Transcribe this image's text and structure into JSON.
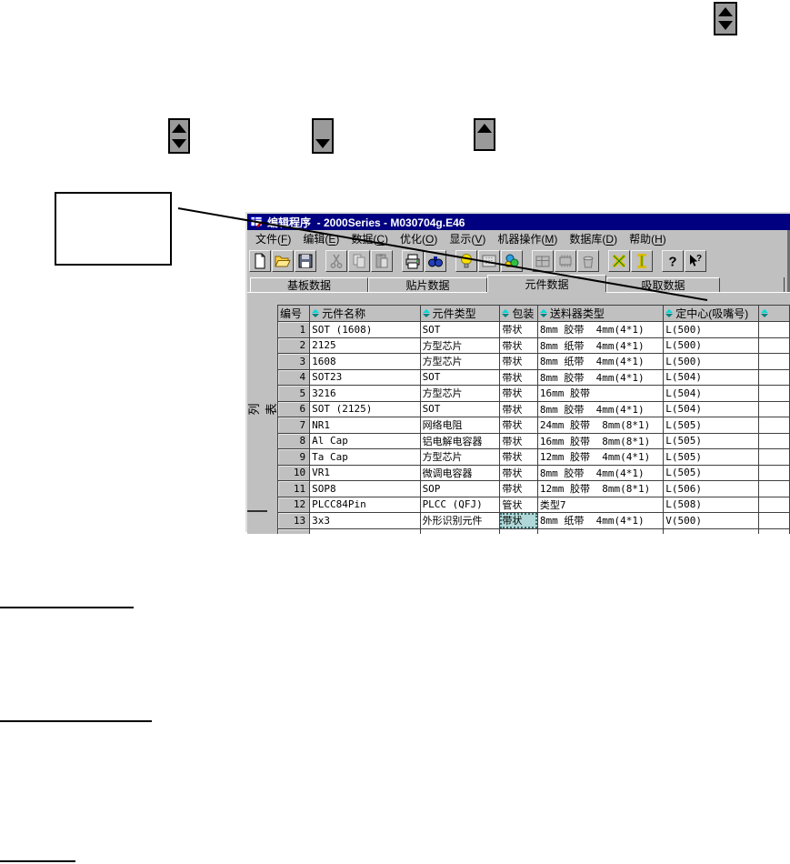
{
  "annotations": {
    "callout_box": "empty callout box pointing to component-data tab area",
    "icons": [
      {
        "name": "spin-up-down-icon",
        "position": "top-right"
      },
      {
        "name": "spin-up-down-icon",
        "position": "mid-left"
      },
      {
        "name": "spin-down-icon",
        "position": "mid-center"
      },
      {
        "name": "spin-up-icon",
        "position": "mid-right"
      }
    ],
    "heading_underlines": 3
  },
  "colors": {
    "titlebar": "#000080",
    "window_bg": "#c0c0c0",
    "sort_up": "#00d8d8",
    "sort_down": "#008080",
    "selected_cell_bg": "#b0d8d8"
  },
  "window": {
    "title": "编辑程序  - 2000Series - M030704g.E46",
    "menu": [
      {
        "id": "file",
        "text_before": "文件(",
        "hotkey": "F",
        "text_after": ")"
      },
      {
        "id": "edit",
        "text_before": "编辑(",
        "hotkey": "E",
        "text_after": ")"
      },
      {
        "id": "data",
        "text_before": "数据(",
        "hotkey": "C",
        "text_after": ")"
      },
      {
        "id": "optimize",
        "text_before": "优化(",
        "hotkey": "O",
        "text_after": ")"
      },
      {
        "id": "view",
        "text_before": "显示(",
        "hotkey": "V",
        "text_after": ")"
      },
      {
        "id": "machine",
        "text_before": "机器操作(",
        "hotkey": "M",
        "text_after": ")"
      },
      {
        "id": "database",
        "text_before": "数据库(",
        "hotkey": "D",
        "text_after": ")"
      },
      {
        "id": "help",
        "text_before": "帮助(",
        "hotkey": "H",
        "text_after": ")"
      }
    ],
    "toolbar": [
      {
        "icon": "new-document-icon",
        "enabled": true
      },
      {
        "icon": "open-file-icon",
        "enabled": true
      },
      {
        "icon": "save-icon",
        "enabled": true
      },
      {
        "separator": true
      },
      {
        "icon": "cut-icon",
        "enabled": false
      },
      {
        "icon": "copy-icon",
        "enabled": false
      },
      {
        "icon": "paste-icon",
        "enabled": false
      },
      {
        "separator": true
      },
      {
        "icon": "print-icon",
        "enabled": true
      },
      {
        "icon": "search-icon",
        "enabled": true
      },
      {
        "separator": true
      },
      {
        "icon": "optimize-bulb-icon",
        "enabled": true
      },
      {
        "icon": "feeder-icon",
        "enabled": true
      },
      {
        "icon": "balance-icon",
        "enabled": true
      },
      {
        "separator": true
      },
      {
        "icon": "machine-icon",
        "enabled": false
      },
      {
        "icon": "chip-icon",
        "enabled": false
      },
      {
        "icon": "delete-icon",
        "enabled": false
      },
      {
        "separator": true
      },
      {
        "icon": "x-spacing-icon",
        "enabled": true
      },
      {
        "icon": "y-spacing-icon",
        "enabled": true
      },
      {
        "separator": true
      },
      {
        "icon": "help-icon",
        "enabled": true
      },
      {
        "icon": "context-help-icon",
        "enabled": true
      }
    ],
    "tabs": [
      {
        "label": "基板数据",
        "active": false
      },
      {
        "label": "贴片数据",
        "active": false
      },
      {
        "label": "元件数据",
        "active": true
      },
      {
        "label": "吸取数据",
        "active": false
      }
    ],
    "side_label": "列表",
    "table": {
      "headers": [
        {
          "label": "编号",
          "sortable": false
        },
        {
          "label": "元件名称",
          "sortable": true
        },
        {
          "label": "元件类型",
          "sortable": true
        },
        {
          "label": "包装",
          "sortable": true
        },
        {
          "label": "送料器类型",
          "sortable": true
        },
        {
          "label": "定中心(吸嘴号)",
          "sortable": true
        },
        {
          "label": "",
          "sortable": true
        }
      ],
      "rows": [
        [
          "1",
          "SOT (1608)",
          "SOT",
          "带状",
          "8mm 胶带  4mm(4*1)",
          "L(500)"
        ],
        [
          "2",
          "2125",
          "方型芯片",
          "带状",
          "8mm 纸带  4mm(4*1)",
          "L(500)"
        ],
        [
          "3",
          "1608",
          "方型芯片",
          "带状",
          "8mm 纸带  4mm(4*1)",
          "L(500)"
        ],
        [
          "4",
          "SOT23",
          "SOT",
          "带状",
          "8mm 胶带  4mm(4*1)",
          "L(504)"
        ],
        [
          "5",
          "3216",
          "方型芯片",
          "带状",
          "16mm 胶带",
          "L(504)"
        ],
        [
          "6",
          "SOT (2125)",
          "SOT",
          "带状",
          "8mm 胶带  4mm(4*1)",
          "L(504)"
        ],
        [
          "7",
          "NR1",
          "网络电阻",
          "带状",
          "24mm 胶带  8mm(8*1)",
          "L(505)"
        ],
        [
          "8",
          "Al Cap",
          "铝电解电容器",
          "带状",
          "16mm 胶带  8mm(8*1)",
          "L(505)"
        ],
        [
          "9",
          "Ta Cap",
          "方型芯片",
          "带状",
          "12mm 胶带  4mm(4*1)",
          "L(505)"
        ],
        [
          "10",
          "VR1",
          "微调电容器",
          "带状",
          "8mm 胶带  4mm(4*1)",
          "L(505)"
        ],
        [
          "11",
          "SOP8",
          "SOP",
          "带状",
          "12mm 胶带  8mm(8*1)",
          "L(506)"
        ],
        [
          "12",
          "PLCC84Pin",
          "PLCC (QFJ)",
          "管状",
          "类型7",
          "L(508)"
        ],
        [
          "13",
          "3x3",
          "外形识别元件",
          "带状",
          "8mm 纸带  4mm(4*1)",
          "V(500)"
        ]
      ],
      "selection": {
        "row_index": 12,
        "col_index": 3
      }
    }
  }
}
